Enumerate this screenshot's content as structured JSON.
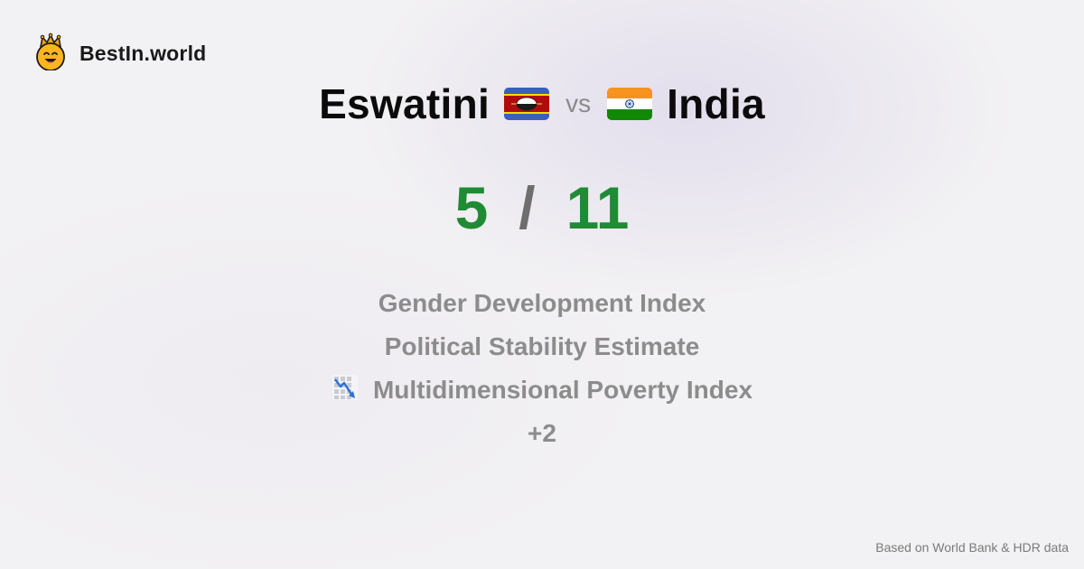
{
  "brand": {
    "name": "BestIn.world",
    "logo_icon": "crowned-smiley-icon"
  },
  "comparison": {
    "left_country": "Eswatini",
    "left_flag_icon": "eswatini-flag-icon",
    "vs_label": "vs",
    "right_country": "India",
    "right_flag_icon": "india-flag-icon"
  },
  "score": {
    "left": "5",
    "separator": "/",
    "right": "11",
    "color": "#1f8b34"
  },
  "metrics": [
    {
      "label": "Gender Development Index"
    },
    {
      "label": "Political Stability Estimate"
    },
    {
      "label": "Multidimensional Poverty Index",
      "icon": "chart-decreasing-icon"
    },
    {
      "label": "+2"
    }
  ],
  "footnote": "Based on World Bank & HDR data"
}
